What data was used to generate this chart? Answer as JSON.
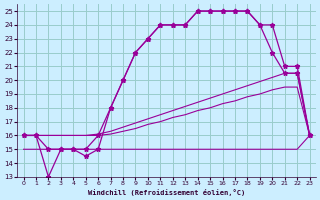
{
  "xlabel": "Windchill (Refroidissement éolien,°C)",
  "hours": [
    0,
    1,
    2,
    3,
    4,
    5,
    6,
    7,
    8,
    9,
    10,
    11,
    12,
    13,
    14,
    15,
    16,
    17,
    18,
    19,
    20,
    21,
    22,
    23
  ],
  "temp": [
    16,
    16,
    15,
    15,
    15,
    15,
    16,
    18,
    20,
    22,
    23,
    24,
    24,
    24,
    25,
    25,
    25,
    25,
    25,
    24,
    22,
    20.5,
    20.5,
    16
  ],
  "windchill": [
    16,
    16,
    13,
    15,
    15,
    14.5,
    15,
    18,
    20,
    22,
    23,
    24,
    24,
    24,
    25,
    25,
    25,
    25,
    25,
    24,
    24,
    21,
    21,
    16
  ],
  "flat_line": [
    15.0,
    15.0,
    15.0,
    15.0,
    15.0,
    15.0,
    15.0,
    15.0,
    15.0,
    15.0,
    15.0,
    15.0,
    15.0,
    15.0,
    15.0,
    15.0,
    15.0,
    15.0,
    15.0,
    15.0,
    15.0,
    15.0,
    15.0,
    16.0
  ],
  "linear1": [
    16.0,
    16.0,
    16.0,
    16.0,
    16.0,
    16.0,
    16.1,
    16.3,
    16.6,
    16.9,
    17.2,
    17.5,
    17.8,
    18.1,
    18.4,
    18.7,
    19.0,
    19.3,
    19.6,
    19.9,
    20.2,
    20.5,
    20.5,
    16.0
  ],
  "linear2": [
    16.0,
    16.0,
    16.0,
    16.0,
    16.0,
    16.0,
    16.0,
    16.1,
    16.3,
    16.5,
    16.8,
    17.0,
    17.3,
    17.5,
    17.8,
    18.0,
    18.3,
    18.5,
    18.8,
    19.0,
    19.3,
    19.5,
    19.5,
    16.0
  ],
  "bg_color": "#cceeff",
  "line_color": "#990099",
  "grid_color": "#99cccc",
  "ylim": [
    13,
    25.5
  ],
  "yticks": [
    13,
    14,
    15,
    16,
    17,
    18,
    19,
    20,
    21,
    22,
    23,
    24,
    25
  ],
  "xticks": [
    0,
    1,
    2,
    3,
    4,
    5,
    6,
    7,
    8,
    9,
    10,
    11,
    12,
    13,
    14,
    15,
    16,
    17,
    18,
    19,
    20,
    21,
    22,
    23
  ]
}
